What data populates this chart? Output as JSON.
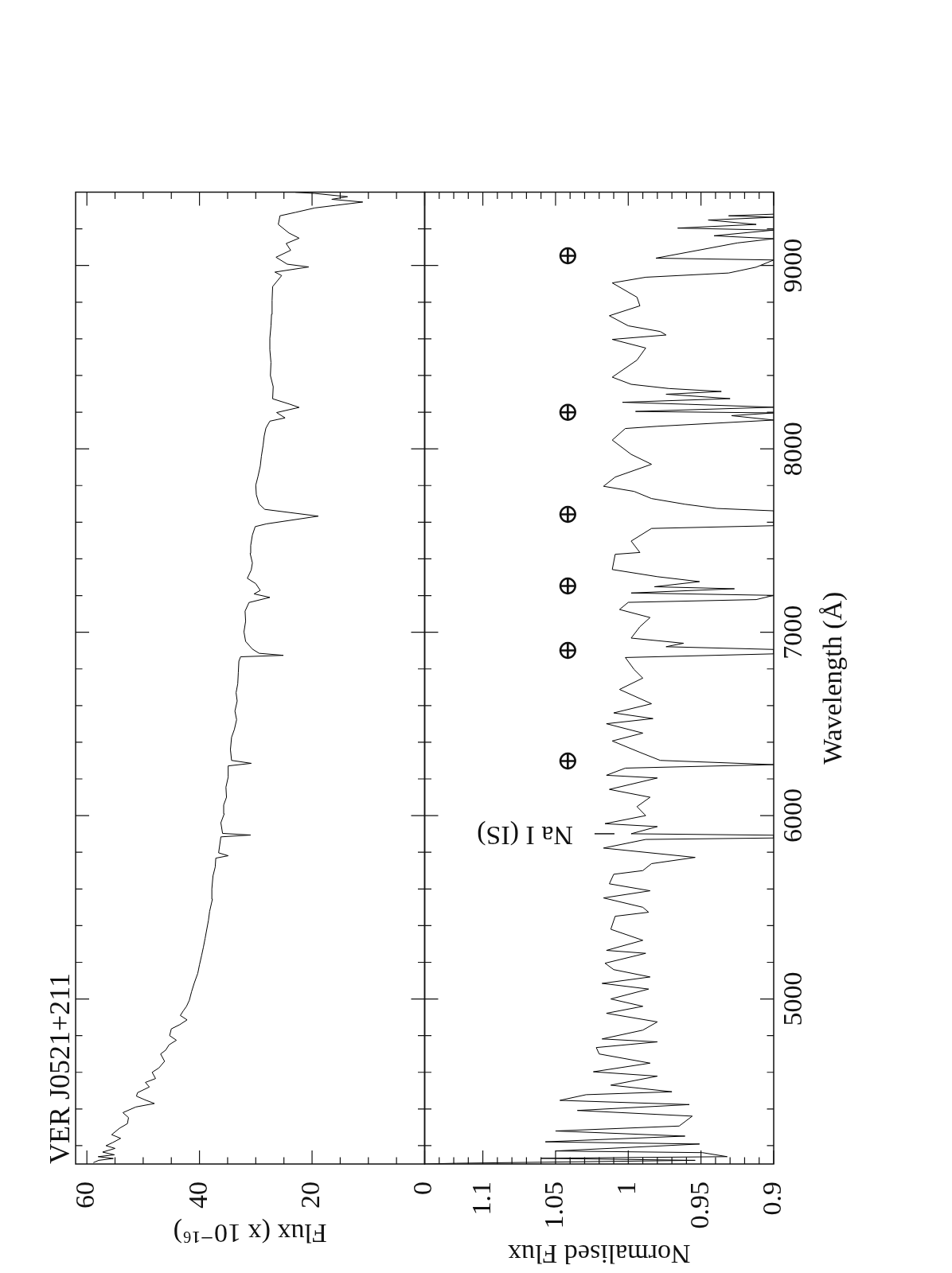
{
  "chart_data": [
    {
      "type": "line",
      "title": "VER J0521+211",
      "xlabel": "Flux (x 10⁻¹⁶)",
      "color": "#000000",
      "x": [
        58.8,
        57.9,
        55.3,
        58.0,
        55.1,
        57.2,
        55.0,
        56.6,
        55.4,
        54.0,
        55.6,
        54.2,
        52.8,
        52.6,
        53.6,
        51.3,
        48.0,
        49.7,
        51.2,
        51.0,
        48.9,
        49.6,
        47.8,
        48.4,
        47.2,
        46.2,
        46.9,
        46.0,
        45.4,
        44.1,
        45.3,
        45.0,
        43.5,
        42.2,
        43.4,
        42.9,
        42.3,
        41.8,
        41.4,
        40.9,
        40.3,
        40.0,
        39.6,
        39.3,
        39.0,
        38.7,
        38.4,
        38.2,
        37.7,
        37.8,
        37.6,
        37.2,
        37.1,
        34.9,
        36.6,
        36.4,
        36.2,
        30.9,
        35.9,
        36.2,
        35.6,
        35.7,
        35.2,
        35.3,
        34.9,
        34.9,
        30.8,
        34.3,
        34.5,
        34.3,
        33.8,
        33.4,
        33.7,
        33.3,
        33.5,
        33.2,
        33.1,
        33.0,
        32.7,
        25.1,
        29.4,
        30.6,
        31.8,
        32.1,
        31.8,
        31.9,
        31.2,
        27.5,
        30.3,
        29.2,
        30.0,
        31.5,
        30.8,
        30.6,
        31.0,
        30.9,
        30.6,
        30.1,
        28.1,
        18.9,
        28.4,
        29.4,
        29.9,
        30.0,
        29.6,
        29.2,
        29.0,
        28.7,
        28.5,
        28.2,
        27.5,
        24.8,
        26.3,
        22.3,
        24.1,
        27.0,
        26.9,
        27.4,
        27.3,
        27.5,
        27.5,
        27.3,
        27.2,
        27.1,
        27.0,
        25.4,
        26.6,
        20.6,
        24.4,
        26.4,
        23.8,
        24.6,
        22.3,
        24.1,
        26.0,
        25.7,
        22.9,
        19.5,
        15.8,
        11.0,
        16.5,
        13.7,
        19.5,
        22.9
      ],
      "values": [
        4108,
        4120,
        4130,
        4140,
        4150,
        4165,
        4185,
        4200,
        4217,
        4240,
        4260,
        4295,
        4320,
        4353,
        4380,
        4411,
        4430,
        4450,
        4470,
        4489,
        4520,
        4545,
        4566,
        4600,
        4624,
        4660,
        4700,
        4721,
        4750,
        4775,
        4800,
        4837,
        4860,
        4886,
        4910,
        4934,
        4960,
        4993,
        5040,
        5089,
        5140,
        5186,
        5240,
        5283,
        5330,
        5380,
        5430,
        5477,
        5545,
        5600,
        5671,
        5720,
        5768,
        5781,
        5797,
        5840,
        5884,
        5894,
        5903,
        5961,
        6010,
        6058,
        6100,
        6155,
        6210,
        6271,
        6285,
        6301,
        6360,
        6427,
        6470,
        6523,
        6570,
        6625,
        6670,
        6719,
        6780,
        6842,
        6866,
        6874,
        6885,
        6908,
        6950,
        7002,
        7060,
        7115,
        7162,
        7190,
        7209,
        7228,
        7265,
        7294,
        7340,
        7378,
        7430,
        7473,
        7530,
        7576,
        7591,
        7633,
        7670,
        7699,
        7750,
        7802,
        7850,
        7906,
        7960,
        8019,
        8070,
        8113,
        8151,
        8169,
        8198,
        8226,
        8245,
        8273,
        8339,
        8400,
        8471,
        8540,
        8603,
        8670,
        8734,
        8810,
        8885,
        8945,
        8964,
        8992,
        9007,
        9045,
        9083,
        9120,
        9149,
        9177,
        9224,
        9271,
        9290,
        9314,
        9328,
        9346,
        9361,
        9375,
        9393,
        9399
      ],
      "xlim": [
        62,
        0
      ],
      "xticks": [
        60,
        {
          "value": 55,
          "label": null
        },
        {
          "value": 50,
          "label": null
        },
        {
          "value": 45,
          "label": null
        },
        40,
        {
          "value": 35,
          "label": null
        },
        {
          "value": 30,
          "label": null
        },
        {
          "value": 25,
          "label": null
        },
        20,
        {
          "value": 15,
          "label": null
        },
        {
          "value": 10,
          "label": null
        },
        {
          "value": 5,
          "label": null
        },
        0
      ],
      "ylim": [
        4100,
        9400
      ],
      "yticks": [
        {
          "value": 4200,
          "label": null
        },
        {
          "value": 4400,
          "label": null
        },
        {
          "value": 4600,
          "label": null
        },
        {
          "value": 4800,
          "label": null
        },
        5000,
        {
          "value": 5200,
          "label": null
        },
        {
          "value": 5400,
          "label": null
        },
        {
          "value": 5600,
          "label": null
        },
        {
          "value": 5800,
          "label": null
        },
        6000,
        {
          "value": 6200,
          "label": null
        },
        {
          "value": 6400,
          "label": null
        },
        {
          "value": 6600,
          "label": null
        },
        {
          "value": 6800,
          "label": null
        },
        7000,
        {
          "value": 7200,
          "label": null
        },
        {
          "value": 7400,
          "label": null
        },
        {
          "value": 7600,
          "label": null
        },
        {
          "value": 7800,
          "label": null
        },
        8000,
        {
          "value": 8200,
          "label": null
        },
        {
          "value": 8400,
          "label": null
        },
        {
          "value": 8600,
          "label": null
        },
        {
          "value": 8800,
          "label": null
        },
        9000,
        {
          "value": 9200,
          "label": null
        }
      ],
      "tick_labels": "x"
    },
    {
      "type": "line",
      "xlabel": "Normalised Flux",
      "ylabel": "Wavelength (Å)",
      "color": "#000000",
      "x": [
        1.14,
        1.118,
        0.954,
        1.06,
        0.932,
        0.949,
        1.05,
        0.951,
        1.057,
        0.961,
        1.05,
        0.965,
        0.956,
        1.035,
        0.958,
        1.047,
        1.029,
        0.97,
        1.012,
        0.98,
        1.024,
        0.985,
        1.02,
        1.022,
        0.98,
        1.018,
        0.99,
        0.98,
        1.015,
        0.99,
        1.012,
        0.986,
        1.018,
        0.985,
        1.01,
        1.016,
        0.988,
        1.015,
        0.99,
        1.012,
        1.009,
        0.986,
        0.99,
        1.017,
        0.985,
        1.013,
        1.01,
        0.99,
        0.984,
        0.954,
        1.017,
        0.988,
        0.9,
        0.9,
        0.998,
        0.98,
        1.016,
        0.988,
        0.994,
        0.985,
        1.013,
        0.98,
        1.015,
        1.002,
        0.9,
        0.978,
        0.992,
        1.011,
        0.99,
        1.015,
        0.983,
        1.01,
        0.984,
        1.006,
        0.99,
        0.996,
        1.002,
        0.9,
        0.9,
        0.974,
        0.962,
        0.998,
        0.992,
        0.985,
        1.006,
        1.0,
        0.912,
        0.9,
        0.998,
        0.927,
        0.982,
        0.951,
        0.98,
        1.011,
        1.009,
        0.992,
        0.998,
        0.984,
        0.9,
        0.9,
        0.939,
        0.961,
        0.984,
        0.996,
        1.017,
        1.009,
        0.984,
        0.998,
        1.011,
        1.002,
        0.98,
        0.9,
        0.929,
        0.9,
        0.995,
        0.9,
        0.959,
        1.004,
        0.93,
        0.974,
        0.936,
        0.972,
        0.998,
        1.011,
        0.994,
        0.988,
        1.011,
        0.974,
        0.978,
        1.0,
        1.013,
        0.992,
        0.994,
        1.011,
        0.988,
        0.931,
        0.912,
        0.9,
        0.981,
        0.925,
        0.9,
        0.941,
        0.9,
        0.966,
        0.912,
        0.945,
        0.9,
        0.931,
        0.9
      ],
      "values": [
        4100,
        4104,
        4120,
        4131,
        4140,
        4162,
        4171,
        4209,
        4221,
        4252,
        4280,
        4307,
        4361,
        4392,
        4424,
        4447,
        4478,
        4494,
        4530,
        4579,
        4603,
        4650,
        4700,
        4735,
        4766,
        4782,
        4830,
        4875,
        4922,
        4960,
        5000,
        5054,
        5085,
        5120,
        5160,
        5195,
        5249,
        5265,
        5320,
        5380,
        5451,
        5473,
        5500,
        5551,
        5590,
        5628,
        5680,
        5700,
        5738,
        5772,
        5823,
        5870,
        5878,
        5893,
        5901,
        5940,
        5956,
        6000,
        6049,
        6100,
        6143,
        6205,
        6220,
        6259,
        6278,
        6301,
        6345,
        6407,
        6450,
        6501,
        6529,
        6560,
        6610,
        6688,
        6750,
        6797,
        6862,
        6882,
        6906,
        6921,
        6940,
        6968,
        7030,
        7080,
        7124,
        7163,
        7178,
        7201,
        7214,
        7237,
        7248,
        7276,
        7303,
        7342,
        7425,
        7435,
        7497,
        7566,
        7581,
        7662,
        7675,
        7698,
        7729,
        7768,
        7796,
        7846,
        7916,
        7970,
        8048,
        8111,
        8123,
        8157,
        8181,
        8196,
        8204,
        8227,
        8243,
        8254,
        8274,
        8298,
        8313,
        8329,
        8352,
        8391,
        8484,
        8550,
        8597,
        8621,
        8640,
        8671,
        8726,
        8780,
        8827,
        8905,
        8936,
        8959,
        8991,
        9030,
        9040,
        9123,
        9146,
        9162,
        9193,
        9204,
        9224,
        9248,
        9263,
        9271,
        9280
      ],
      "xlim": [
        1.14,
        0.9
      ],
      "xticks": [
        {
          "value": 1.13,
          "label": null
        },
        {
          "value": 1.12,
          "label": null
        },
        {
          "value": 1.11,
          "label": null
        },
        1.1,
        {
          "value": 1.09,
          "label": null
        },
        {
          "value": 1.08,
          "label": null
        },
        {
          "value": 1.07,
          "label": null
        },
        {
          "value": 1.06,
          "label": null
        },
        1.05,
        {
          "value": 1.04,
          "label": null
        },
        {
          "value": 1.03,
          "label": null
        },
        {
          "value": 1.02,
          "label": null
        },
        {
          "value": 1.01,
          "label": null
        },
        1,
        {
          "value": 0.99,
          "label": null
        },
        {
          "value": 0.98,
          "label": null
        },
        {
          "value": 0.97,
          "label": null
        },
        {
          "value": 0.96,
          "label": null
        },
        0.95,
        {
          "value": 0.94,
          "label": null
        },
        {
          "value": 0.93,
          "label": null
        },
        {
          "value": 0.92,
          "label": null
        },
        {
          "value": 0.91,
          "label": null
        },
        0.9
      ],
      "ylim": [
        4100,
        9400
      ],
      "yticks": [
        {
          "value": 4200,
          "label": null
        },
        {
          "value": 4400,
          "label": null
        },
        {
          "value": 4600,
          "label": null
        },
        {
          "value": 4800,
          "label": null
        },
        5000,
        {
          "value": 5200,
          "label": null
        },
        {
          "value": 5400,
          "label": null
        },
        {
          "value": 5600,
          "label": null
        },
        {
          "value": 5800,
          "label": null
        },
        6000,
        {
          "value": 6200,
          "label": null
        },
        {
          "value": 6400,
          "label": null
        },
        {
          "value": 6600,
          "label": null
        },
        {
          "value": 6800,
          "label": null
        },
        7000,
        {
          "value": 7200,
          "label": null
        },
        {
          "value": 7400,
          "label": null
        },
        {
          "value": 7600,
          "label": null
        },
        {
          "value": 7800,
          "label": null
        },
        8000,
        {
          "value": 8200,
          "label": null
        },
        {
          "value": 8400,
          "label": null
        },
        {
          "value": 8600,
          "label": null
        },
        {
          "value": 8800,
          "label": null
        },
        9000,
        {
          "value": 9200,
          "label": null
        }
      ],
      "annotations": [
        {
          "text": "Na I (IS)",
          "x": 0.998,
          "y": 5901
        },
        "⊕",
        "⊕",
        "⊕",
        "⊕",
        "⊕",
        "⊕"
      ]
    }
  ]
}
